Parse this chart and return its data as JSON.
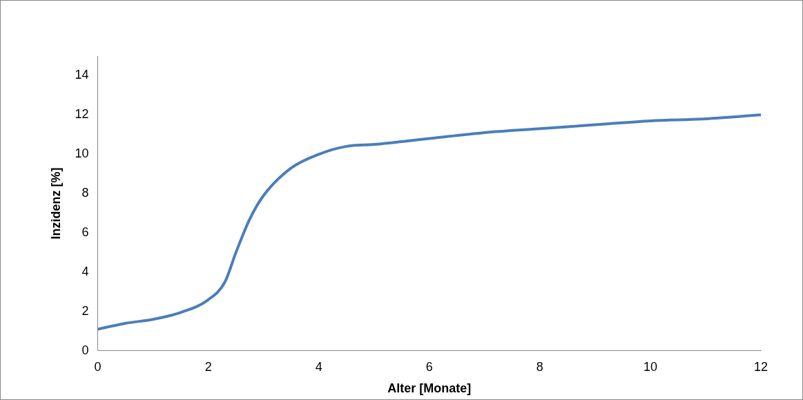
{
  "chart_data": {
    "type": "line",
    "xlabel": "Alter [Monate]",
    "ylabel": "Inzidenz [%]",
    "series": [
      {
        "color": "#4a7ebb",
        "x": [
          0,
          0.5,
          1,
          1.5,
          2,
          2.3,
          2.5,
          2.75,
          3,
          3.5,
          4,
          4.5,
          5,
          6,
          7,
          8,
          9,
          10,
          11,
          12
        ],
        "values": [
          1.1,
          1.4,
          1.6,
          1.95,
          2.6,
          3.5,
          5,
          6.7,
          7.9,
          9.3,
          10,
          10.4,
          10.5,
          10.8,
          11.1,
          11.3,
          11.5,
          11.7,
          11.8,
          12
        ]
      }
    ],
    "xlim": [
      0,
      12
    ],
    "xticks": [
      0,
      2,
      4,
      6,
      8,
      10,
      12
    ],
    "ylim": [
      0,
      15
    ],
    "yticks": [
      0,
      2,
      4,
      6,
      8,
      10,
      12,
      14
    ],
    "grid": false,
    "legend": false,
    "marker": "none",
    "line_style": "solid"
  }
}
